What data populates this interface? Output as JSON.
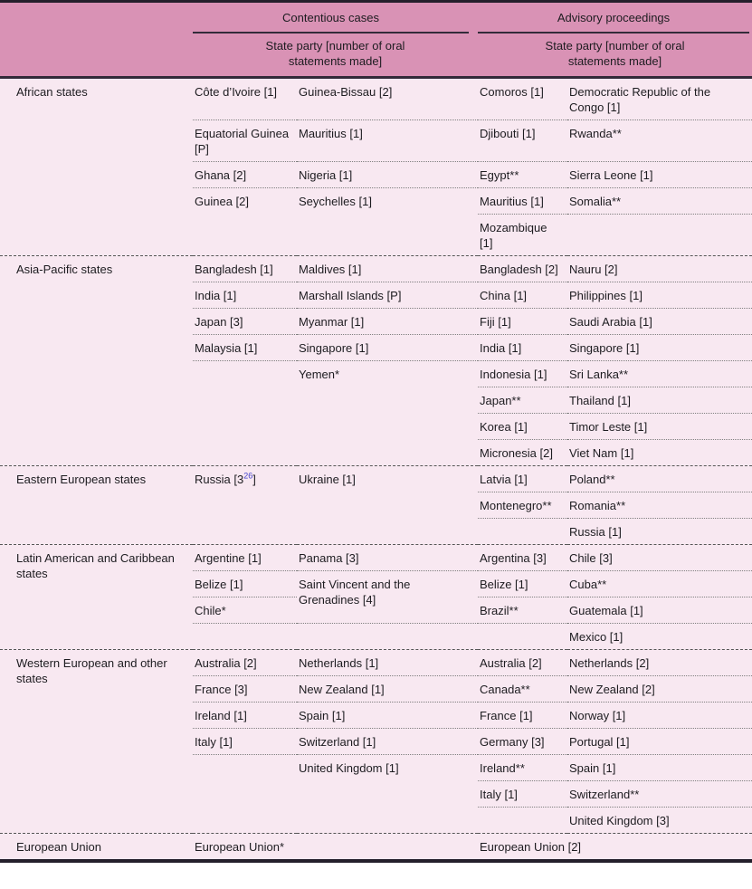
{
  "table": {
    "header": {
      "contentious": "Contentious cases",
      "advisory": "Advisory proceedings",
      "subheader": "State party [number of oral statements made]"
    },
    "colors": {
      "header_bg": "#d992b5",
      "body_bg": "#f8e8f1",
      "frame_line": "#241f2b",
      "header_rule": "#332b3a",
      "footnote_link": "#4545cd"
    },
    "groups": [
      {
        "region": "African states",
        "rows": [
          [
            {
              "t": "Côte d’Ivoire [1]",
              "b": 1
            },
            {
              "t": "Guinea-Bissau [2]",
              "b": 1
            },
            {
              "t": "Comoros [1]",
              "b": 1
            },
            {
              "t": "Democratic Republic of the Congo [1]",
              "b": 1
            }
          ],
          [
            {
              "t": "Equatorial Guinea [P]",
              "b": 1
            },
            {
              "t": "Mauritius [1]",
              "b": 1
            },
            {
              "t": "Djibouti [1]",
              "b": 1
            },
            {
              "t": "Rwanda**",
              "b": 1
            }
          ],
          [
            {
              "t": "Ghana [2]",
              "b": 1
            },
            {
              "t": "Nigeria [1]",
              "b": 1
            },
            {
              "t": "Egypt**",
              "b": 1
            },
            {
              "t": "Sierra Leone [1]",
              "b": 1
            }
          ],
          [
            {
              "t": "Guinea [2]"
            },
            {
              "t": "Seychelles [1]"
            },
            {
              "t": "Mauritius [1]",
              "b": 1
            },
            {
              "t": "Somalia**",
              "b": 1
            }
          ],
          [
            null,
            null,
            {
              "t": "Mozambique [1]"
            },
            null
          ]
        ]
      },
      {
        "region": "Asia-Pacific states",
        "rows": [
          [
            {
              "t": "Bangladesh [1]",
              "b": 1
            },
            {
              "t": "Maldives [1]",
              "b": 1
            },
            {
              "t": "Bangladesh [2]",
              "b": 1
            },
            {
              "t": "Nauru [2]",
              "b": 1
            }
          ],
          [
            {
              "t": "India [1]",
              "b": 1
            },
            {
              "t": "Marshall Islands [P]",
              "b": 1
            },
            {
              "t": "China [1]",
              "b": 1
            },
            {
              "t": "Philippines [1]",
              "b": 1
            }
          ],
          [
            {
              "t": "Japan [3]",
              "b": 1
            },
            {
              "t": "Myanmar [1]",
              "b": 1
            },
            {
              "t": "Fiji [1]",
              "b": 1
            },
            {
              "t": "Saudi Arabia [1]",
              "b": 1
            }
          ],
          [
            {
              "t": "Malaysia [1]",
              "b": 1
            },
            {
              "t": "Singapore [1]",
              "b": 1
            },
            {
              "t": "India [1]",
              "b": 1
            },
            {
              "t": "Singapore [1]",
              "b": 1
            }
          ],
          [
            null,
            {
              "t": "Yemen*"
            },
            {
              "t": "Indonesia [1]",
              "b": 1
            },
            {
              "t": "Sri Lanka**",
              "b": 1
            }
          ],
          [
            null,
            null,
            {
              "t": "Japan**",
              "b": 1
            },
            {
              "t": "Thailand [1]",
              "b": 1
            }
          ],
          [
            null,
            null,
            {
              "t": "Korea [1]",
              "b": 1
            },
            {
              "t": "Timor Leste [1]",
              "b": 1
            }
          ],
          [
            null,
            null,
            {
              "t": "Micronesia [2]"
            },
            {
              "t": "Viet Nam [1]"
            }
          ]
        ]
      },
      {
        "region": "Eastern European states",
        "rows": [
          [
            {
              "sup": {
                "pre": "Russia [3",
                "n": "26",
                "post": "]"
              }
            },
            {
              "t": "Ukraine [1]"
            },
            {
              "t": "Latvia [1]",
              "b": 1
            },
            {
              "t": "Poland**",
              "b": 1
            }
          ],
          [
            null,
            null,
            {
              "t": "Montenegro**",
              "b": 1
            },
            {
              "t": "Romania**",
              "b": 1
            }
          ],
          [
            null,
            null,
            null,
            {
              "t": "Russia [1]"
            }
          ]
        ]
      },
      {
        "region": "Latin American and Caribbean states",
        "rows": [
          [
            {
              "t": "Argentine [1]",
              "b": 1
            },
            {
              "t": "Panama [3]",
              "b": 1
            },
            {
              "t": "Argentina [3]",
              "b": 1
            },
            {
              "t": "Chile [3]",
              "b": 1
            }
          ],
          [
            {
              "t": "Belize [1]",
              "b": 1
            },
            {
              "t": "Saint Vincent and the Grenadines [4]",
              "rowspan": 2,
              "b": 1
            },
            {
              "t": "Belize [1]",
              "b": 1
            },
            {
              "t": "Cuba**",
              "b": 1
            }
          ],
          [
            {
              "t": "Chile*",
              "b": 1
            },
            {
              "skip": true
            },
            {
              "t": "Brazil**",
              "b": 1
            },
            {
              "t": "Guatemala [1]",
              "b": 1
            }
          ],
          [
            null,
            null,
            null,
            {
              "t": "Mexico [1]"
            }
          ]
        ]
      },
      {
        "region": "Western European and other states",
        "rows": [
          [
            {
              "t": "Australia [2]",
              "b": 1
            },
            {
              "t": "Netherlands [1]",
              "b": 1
            },
            {
              "t": "Australia [2]",
              "b": 1
            },
            {
              "t": "Netherlands [2]",
              "b": 1
            }
          ],
          [
            {
              "t": "France [3]",
              "b": 1
            },
            {
              "t": "New Zealand [1]",
              "b": 1
            },
            {
              "t": "Canada**",
              "b": 1
            },
            {
              "t": "New Zealand [2]",
              "b": 1
            }
          ],
          [
            {
              "t": "Ireland [1]",
              "b": 1
            },
            {
              "t": "Spain [1]",
              "b": 1
            },
            {
              "t": "France [1]",
              "b": 1
            },
            {
              "t": "Norway [1]",
              "b": 1
            }
          ],
          [
            {
              "t": "Italy [1]",
              "b": 1
            },
            {
              "t": "Switzerland [1]",
              "b": 1
            },
            {
              "t": "Germany [3]",
              "b": 1
            },
            {
              "t": "Portugal [1]",
              "b": 1
            }
          ],
          [
            null,
            {
              "t": "United Kingdom [1]"
            },
            {
              "t": "Ireland**",
              "b": 1
            },
            {
              "t": "Spain [1]",
              "b": 1
            }
          ],
          [
            null,
            null,
            {
              "t": "Italy [1]",
              "b": 1
            },
            {
              "t": "Switzerland**",
              "b": 1
            }
          ],
          [
            null,
            null,
            null,
            {
              "t": "United Kingdom [3]"
            }
          ]
        ]
      },
      {
        "region": "European Union",
        "rows": [
          [
            {
              "t": "European Union*",
              "colspan": 2
            },
            {
              "skip": true
            },
            {
              "t": "European Union [2]",
              "colspan": 2
            },
            {
              "skip": true
            }
          ]
        ]
      }
    ]
  }
}
